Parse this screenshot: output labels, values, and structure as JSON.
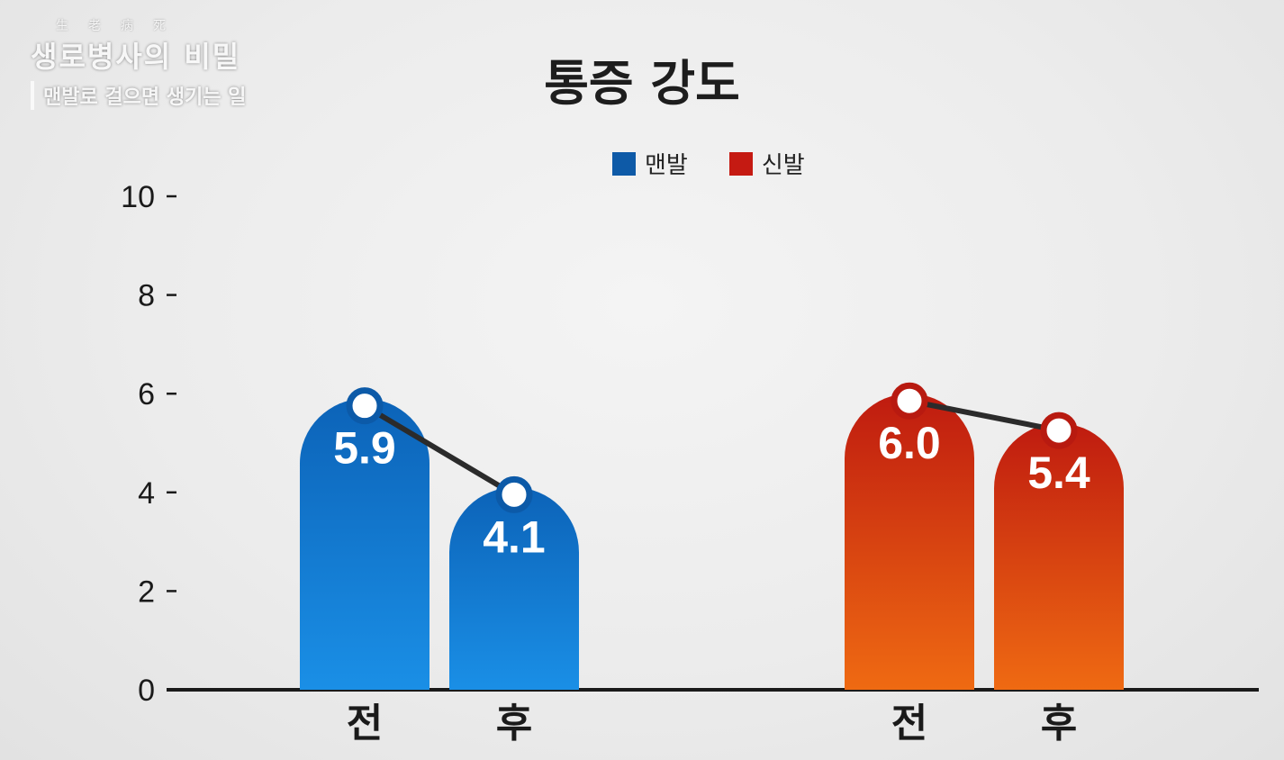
{
  "watermark": {
    "small": "生老病死",
    "title": "생로병사의 비밀",
    "subtitle": "맨발로 걸으면 생기는 일"
  },
  "chart_data": {
    "type": "bar",
    "title": "통증 강도",
    "xlabel": "",
    "ylabel": "",
    "ylim": [
      0,
      10
    ],
    "yticks": [
      0,
      2,
      4,
      6,
      8,
      10
    ],
    "grid": false,
    "legend_position": "top",
    "groups": [
      {
        "name": "맨발",
        "color": "#0e5aa7",
        "categories": [
          "전",
          "후"
        ],
        "values": [
          5.9,
          4.1
        ],
        "value_labels": [
          "5.9",
          "4.1"
        ]
      },
      {
        "name": "신발",
        "color": "#c51a12",
        "categories": [
          "전",
          "후"
        ],
        "values": [
          6.0,
          5.4
        ],
        "value_labels": [
          "6.0",
          "5.4"
        ]
      }
    ]
  }
}
